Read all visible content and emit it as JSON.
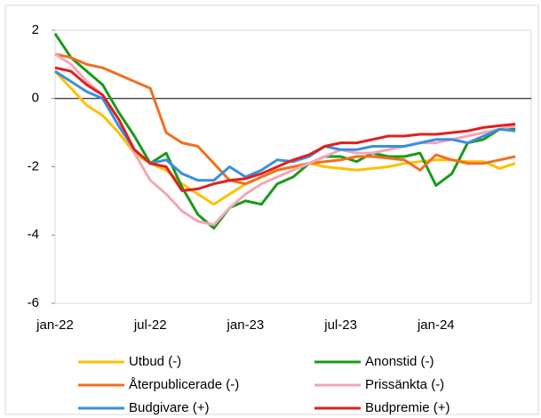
{
  "chart_data": {
    "type": "line",
    "categories": [
      "jan-22",
      null,
      null,
      null,
      null,
      null,
      "jul-22",
      null,
      null,
      null,
      null,
      null,
      "jan-23",
      null,
      null,
      null,
      null,
      null,
      "jul-23",
      null,
      null,
      null,
      null,
      null,
      "jan-24",
      null,
      null,
      null,
      null,
      null
    ],
    "series": [
      {
        "name": "Utbud (-)",
        "color": "#ffc000",
        "values": [
          0.8,
          0.3,
          -0.2,
          -0.5,
          -1.0,
          -1.6,
          -1.9,
          -2.1,
          -2.5,
          -2.8,
          -3.1,
          -2.8,
          -2.5,
          -2.3,
          -2.1,
          -2.0,
          -1.9,
          -2.0,
          -2.05,
          -2.1,
          -2.05,
          -2.0,
          -1.9,
          -1.85,
          -1.8,
          -1.8,
          -1.85,
          -1.85,
          -2.05,
          -1.9
        ]
      },
      {
        "name": "Anonstid (-)",
        "color": "#1a9a1a",
        "values": [
          1.9,
          1.2,
          0.8,
          0.4,
          -0.4,
          -1.1,
          -1.9,
          -1.6,
          -2.6,
          -3.4,
          -3.8,
          -3.2,
          -3.0,
          -3.1,
          -2.5,
          -2.3,
          -1.9,
          -1.7,
          -1.7,
          -1.85,
          -1.6,
          -1.7,
          -1.7,
          -1.6,
          -2.55,
          -2.2,
          -1.3,
          -1.2,
          -0.9,
          -0.9
        ]
      },
      {
        "name": "Återpublicerade (-)",
        "color": "#f07020",
        "values": [
          1.3,
          1.2,
          1.0,
          0.9,
          0.7,
          0.5,
          0.3,
          -1.0,
          -1.3,
          -1.4,
          -1.9,
          -2.4,
          -2.5,
          -2.3,
          -2.1,
          -2.0,
          -1.9,
          -1.85,
          -1.8,
          -1.7,
          -1.7,
          -1.75,
          -1.8,
          -2.1,
          -1.65,
          -1.8,
          -1.9,
          -1.9,
          -1.8,
          -1.7
        ]
      },
      {
        "name": "Prissänkta (-)",
        "color": "#f4a6b6",
        "values": [
          1.3,
          1.0,
          0.5,
          0.1,
          -0.6,
          -1.6,
          -2.4,
          -2.8,
          -3.3,
          -3.6,
          -3.7,
          -3.2,
          -2.8,
          -2.5,
          -2.3,
          -2.1,
          -1.9,
          -1.7,
          -1.5,
          -1.6,
          -1.6,
          -1.5,
          -1.4,
          -1.3,
          -1.3,
          -1.2,
          -1.1,
          -1.0,
          -0.9,
          -0.8
        ]
      },
      {
        "name": "Budgivare (+)",
        "color": "#3a8ee0",
        "values": [
          0.8,
          0.5,
          0.2,
          0.0,
          -0.8,
          -1.5,
          -1.9,
          -1.8,
          -2.2,
          -2.4,
          -2.4,
          -2.0,
          -2.3,
          -2.1,
          -1.8,
          -1.85,
          -1.7,
          -1.4,
          -1.5,
          -1.5,
          -1.4,
          -1.4,
          -1.4,
          -1.3,
          -1.2,
          -1.2,
          -1.3,
          -1.1,
          -0.9,
          -0.95
        ]
      },
      {
        "name": "Budpremie (+)",
        "color": "#e02020",
        "values": [
          0.9,
          0.8,
          0.4,
          0.1,
          -0.6,
          -1.5,
          -1.9,
          -2.0,
          -2.7,
          -2.65,
          -2.5,
          -2.4,
          -2.35,
          -2.2,
          -2.0,
          -1.8,
          -1.65,
          -1.4,
          -1.3,
          -1.3,
          -1.2,
          -1.1,
          -1.1,
          -1.05,
          -1.05,
          -1.0,
          -0.95,
          -0.85,
          -0.8,
          -0.75
        ]
      }
    ],
    "ylim": [
      -6,
      2
    ],
    "yticks": [
      -6,
      -4,
      -2,
      0,
      2
    ]
  }
}
